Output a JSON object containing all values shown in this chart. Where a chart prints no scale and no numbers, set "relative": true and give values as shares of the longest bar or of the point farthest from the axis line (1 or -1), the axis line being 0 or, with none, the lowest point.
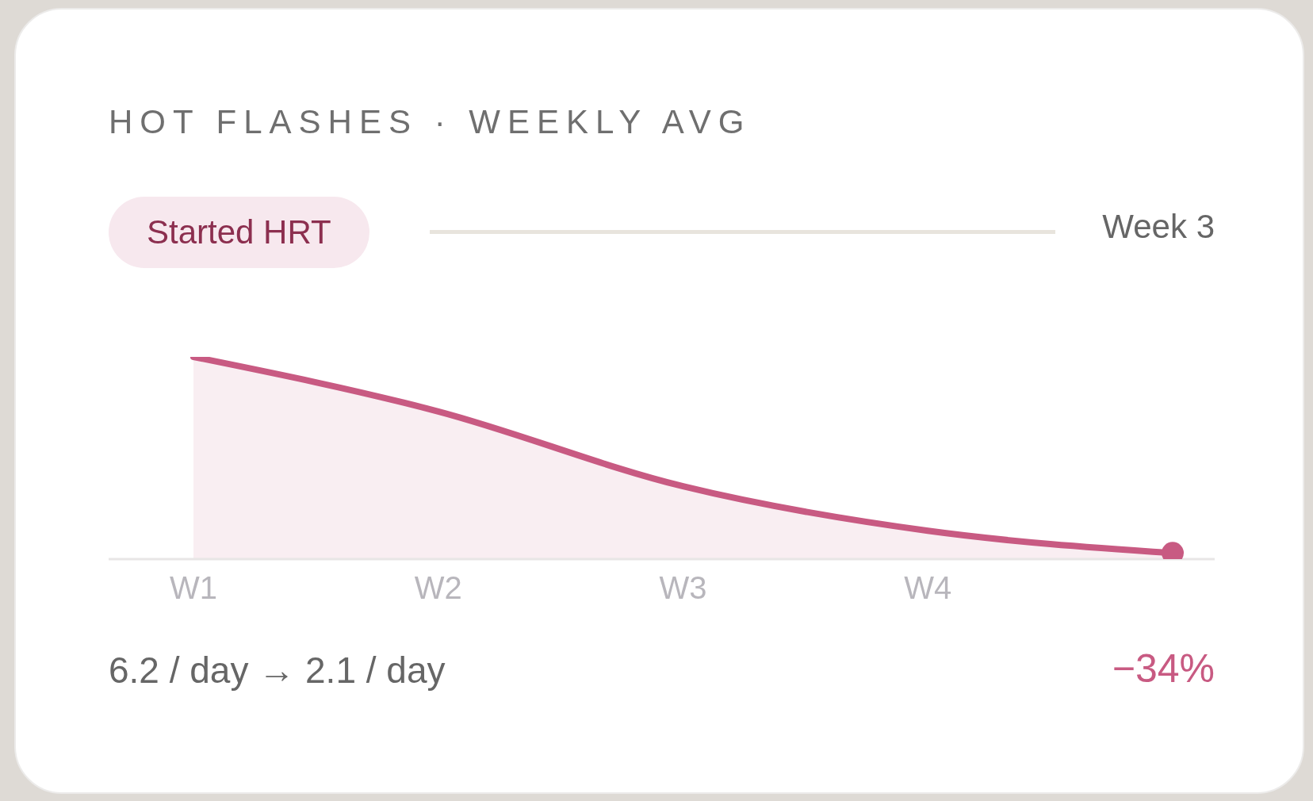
{
  "chart_data": {
    "type": "area",
    "title": "HOT FLASHES · WEEKLY AVG",
    "relative": true,
    "categories": [
      "W1",
      "W2",
      "W3",
      "W4",
      null
    ],
    "values": [
      1,
      0.73,
      0.36,
      0.14,
      0.03
    ],
    "color": "#c85a82",
    "annotations": [
      "Started HRT",
      "Week 3",
      "6.2 / day → 2.1 / day",
      "−34%"
    ]
  }
}
